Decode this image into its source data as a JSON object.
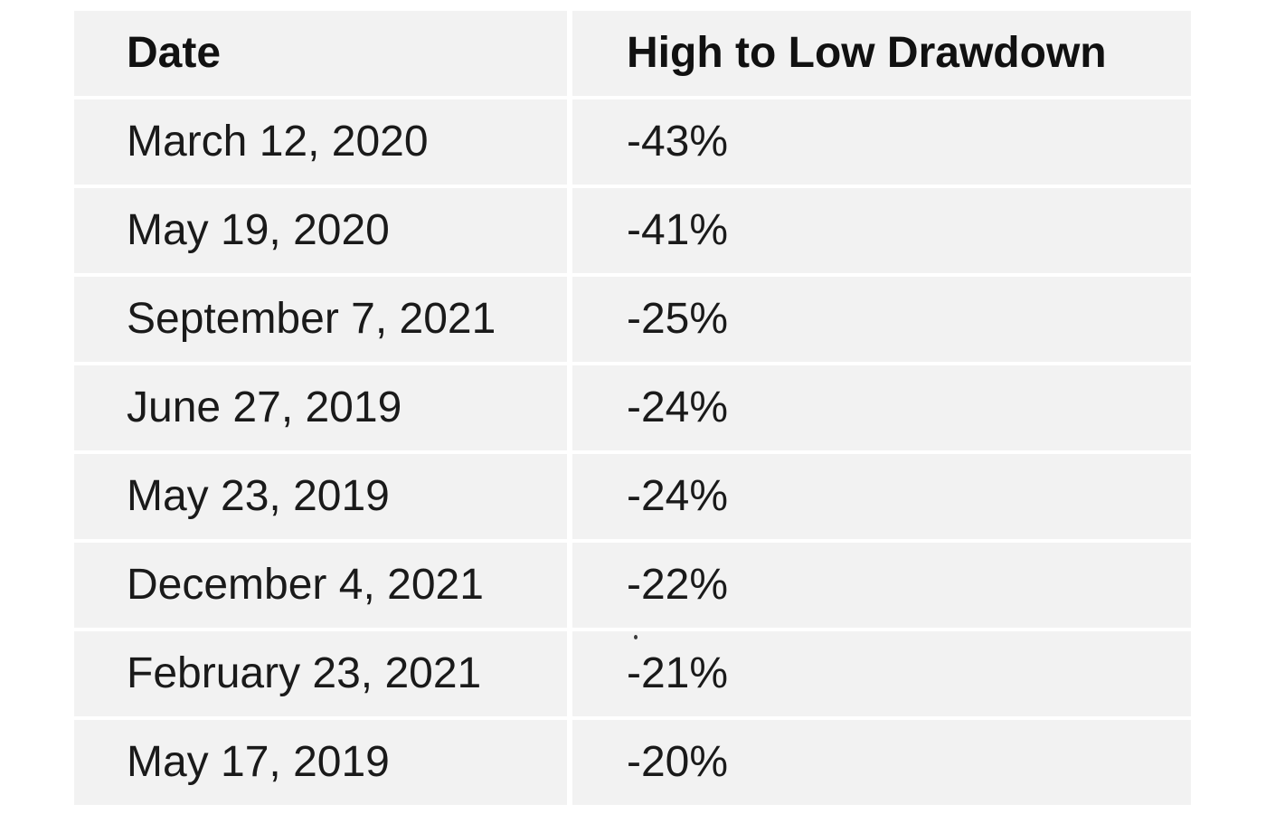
{
  "chart_data": {
    "type": "table",
    "columns": [
      "Date",
      "High to Low Drawdown"
    ],
    "rows": [
      {
        "date": "March 12, 2020",
        "drawdown": "-43%"
      },
      {
        "date": "May 19, 2020",
        "drawdown": "-41%"
      },
      {
        "date": "September 7, 2021",
        "drawdown": "-25%"
      },
      {
        "date": "June 27, 2019",
        "drawdown": "-24%"
      },
      {
        "date": "May 23, 2019",
        "drawdown": "-24%"
      },
      {
        "date": "December 4, 2021",
        "drawdown": "-22%"
      },
      {
        "date": "February 23, 2021",
        "drawdown": "-21%"
      },
      {
        "date": "May 17, 2019",
        "drawdown": "-20%"
      }
    ]
  },
  "colors": {
    "cell_background": "#f2f2f2",
    "divider": "#ffffff",
    "header_text": "#111111",
    "body_text": "#1a1a1a"
  }
}
